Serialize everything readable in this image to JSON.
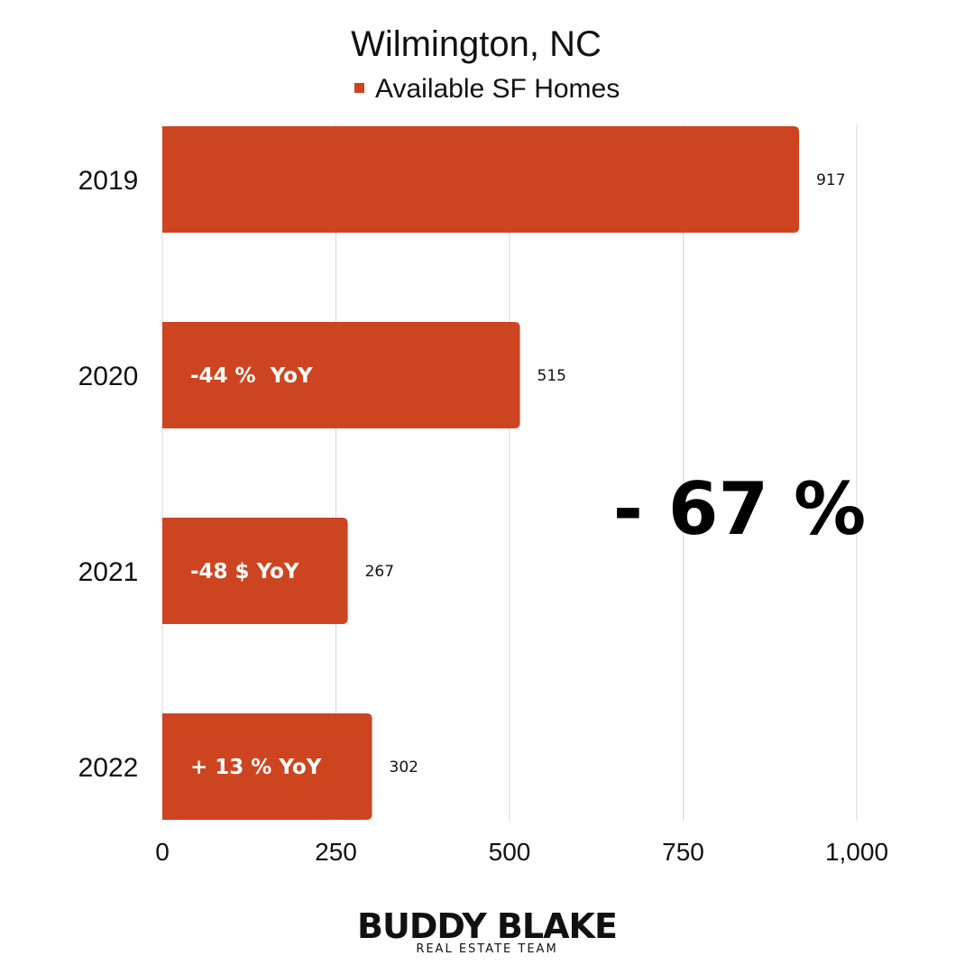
{
  "colors": {
    "bar": "#CD4520",
    "grid": "#D6D6D6",
    "text": "#111111"
  },
  "chart_data": {
    "type": "bar",
    "orientation": "horizontal",
    "title": "Wilmington, NC",
    "legend": {
      "placement": "top",
      "entries": [
        "Available SF Homes"
      ]
    },
    "categories": [
      "2019",
      "2020",
      "2021",
      "2022"
    ],
    "series": [
      {
        "name": "Available SF Homes",
        "values": [
          917,
          515,
          267,
          302
        ]
      }
    ],
    "value_labels": [
      "917",
      "515",
      "267",
      "302"
    ],
    "bar_annotations": [
      "",
      "-44 %  YoY",
      "-48 $ YoY",
      "+ 13 % YoY"
    ],
    "xlim": [
      0,
      1000
    ],
    "x_ticks": [
      0,
      250,
      500,
      750,
      1000
    ],
    "x_tick_labels": [
      "0",
      "250",
      "500",
      "750",
      "1,000"
    ],
    "grid": "vertical",
    "annotation": "- 67 %"
  },
  "branding": {
    "logo_main": "BUDDY BLAKE",
    "logo_sub": "REAL ESTATE TEAM"
  }
}
